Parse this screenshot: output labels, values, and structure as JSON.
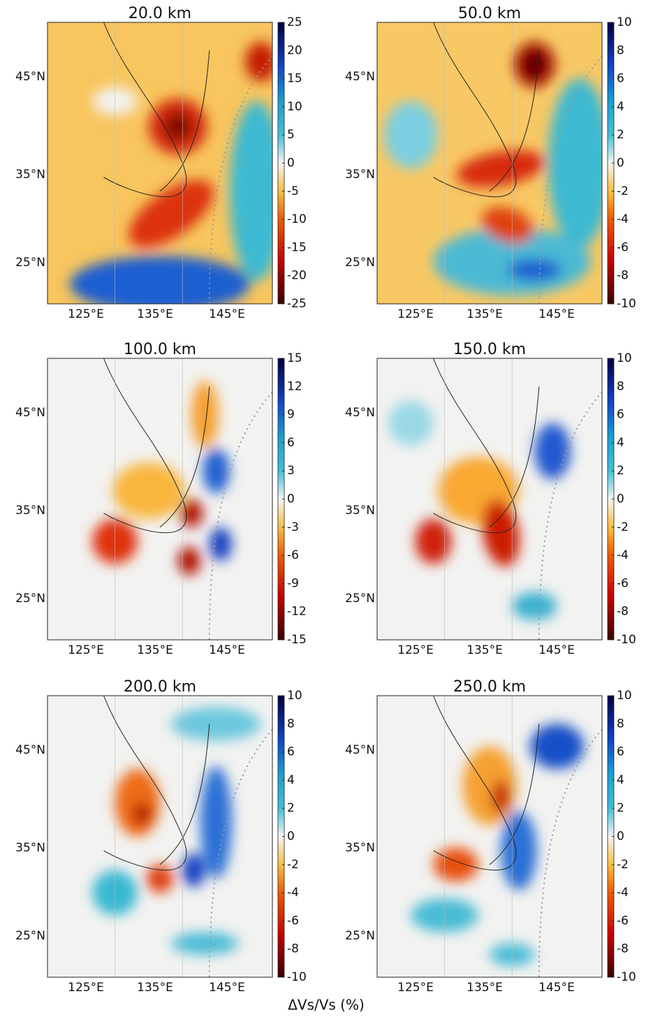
{
  "panels": [
    {
      "title": "20.0 km",
      "colorbar": {
        "lim": [
          -25,
          25
        ],
        "ticks": [
          25,
          20,
          15,
          10,
          5,
          0,
          -5,
          -10,
          -15,
          -20,
          -25
        ]
      }
    },
    {
      "title": "50.0 km",
      "colorbar": {
        "lim": [
          -10,
          10
        ],
        "ticks": [
          10,
          8,
          6,
          4,
          2,
          0,
          -2,
          -4,
          -6,
          -8,
          -10
        ]
      }
    },
    {
      "title": "100.0 km",
      "colorbar": {
        "lim": [
          -15,
          15
        ],
        "ticks": [
          15,
          12,
          9,
          6,
          3,
          0,
          -3,
          -6,
          -9,
          -12,
          -15
        ]
      }
    },
    {
      "title": "150.0 km",
      "colorbar": {
        "lim": [
          -10,
          10
        ],
        "ticks": [
          10,
          8,
          6,
          4,
          2,
          0,
          -2,
          -4,
          -6,
          -8,
          -10
        ]
      }
    },
    {
      "title": "200.0 km",
      "colorbar": {
        "lim": [
          -10,
          10
        ],
        "ticks": [
          10,
          8,
          6,
          4,
          2,
          0,
          -2,
          -4,
          -6,
          -8,
          -10
        ]
      }
    },
    {
      "title": "250.0 km",
      "colorbar": {
        "lim": [
          -10,
          10
        ],
        "ticks": [
          10,
          8,
          6,
          4,
          2,
          0,
          -2,
          -4,
          -6,
          -8,
          -10
        ]
      }
    }
  ],
  "lon_ticks": [
    "125°E",
    "135°E",
    "145°E"
  ],
  "lat_ticks": [
    "45°N",
    "35°N",
    "25°N"
  ],
  "colorbar_label": "ΔVs/Vs (%)"
}
